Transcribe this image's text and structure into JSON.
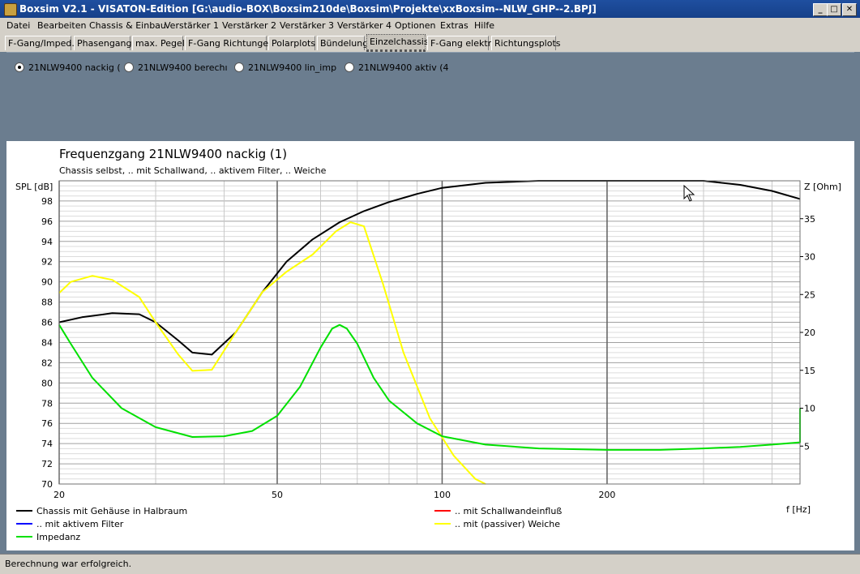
{
  "window": {
    "title": "Boxsim V2.1 - VISATON-Edition [G:\\audio-BOX\\Boxsim210de\\Boxsim\\Projekte\\xxBoxsim--NLW_GHP--2.BPJ]"
  },
  "menu": [
    "Datei",
    "Bearbeiten",
    "Chassis & Einbau",
    "Verstärker 1",
    "Verstärker 2",
    "Verstärker 3",
    "Verstärker 4",
    "Optionen",
    "Extras",
    "Hilfe"
  ],
  "tabs": [
    "F-Gang/Imped.",
    "Phasengang",
    "max. Pegel",
    "F-Gang Richtungen",
    "Polarplots",
    "Bündelung",
    "Einzelchassis",
    "F-Gang elektr.",
    "Richtungsplots"
  ],
  "active_tab": "Einzelchassis",
  "radios": [
    {
      "label": "21NLW9400 nackig (",
      "selected": true
    },
    {
      "label": "21NLW9400 berechı",
      "selected": false
    },
    {
      "label": "21NLW9400 lin_imp",
      "selected": false
    },
    {
      "label": "21NLW9400 aktiv (4",
      "selected": false
    }
  ],
  "status": "Berechnung war erfolgreich.",
  "chart_data": {
    "type": "line",
    "title": "Frequenzgang 21NLW9400 nackig (1)",
    "subtitle": "Chassis selbst, .. mit Schallwand, .. aktivem Filter, .. Weiche",
    "ylabel": "SPL [dB]",
    "y2label": "Z [Ohm]",
    "xlabel": "f [Hz]",
    "x_scale": "log",
    "xlim": [
      20,
      450
    ],
    "ylim": [
      70,
      100
    ],
    "y2lim": [
      0,
      40
    ],
    "x_ticks": [
      20,
      50,
      100,
      200
    ],
    "y_ticks": [
      70,
      72,
      74,
      76,
      78,
      80,
      82,
      84,
      86,
      88,
      90,
      92,
      94,
      96,
      98
    ],
    "y2_ticks": [
      5,
      10,
      15,
      20,
      25,
      30,
      35
    ],
    "legend": [
      "Chassis mit Gehäuse in Halbraum",
      ".. mit Schallwandeinfluß",
      ".. mit aktivem Filter",
      ".. mit (passiver) Weiche",
      "Impedanz"
    ],
    "legend_colors": [
      "#000000",
      "#ff0000",
      "#0000ff",
      "#ffff00",
      "#00e000"
    ],
    "series": [
      {
        "name": "Chassis mit Gehäuse in Halbraum",
        "color": "#000000",
        "axis": "left",
        "x": [
          20,
          22,
          25,
          28,
          30,
          33,
          35,
          38,
          42,
          47,
          52,
          58,
          65,
          72,
          80,
          90,
          100,
          120,
          150,
          200,
          250,
          300,
          350,
          400,
          450
        ],
        "y": [
          86,
          86.5,
          86.9,
          86.8,
          86,
          84.2,
          83,
          82.8,
          85,
          89,
          92,
          94.2,
          95.9,
          97,
          97.9,
          98.7,
          99.3,
          99.8,
          100,
          100,
          100,
          100,
          99.6,
          99,
          98.2
        ]
      },
      {
        "name": ".. mit (passiver) Weiche",
        "color": "#ffff00",
        "axis": "left",
        "x": [
          20,
          21,
          23,
          25,
          28,
          30,
          33,
          35,
          38,
          42,
          47,
          52,
          58,
          64,
          68,
          72,
          78,
          85,
          95,
          105,
          115,
          120
        ],
        "y": [
          88.9,
          90,
          90.6,
          90.2,
          88.5,
          86,
          82.8,
          81.2,
          81.3,
          85,
          89,
          91,
          92.7,
          95,
          95.9,
          95.5,
          89.8,
          83,
          76.5,
          72.8,
          70.5,
          70
        ]
      },
      {
        "name": "Impedanz",
        "color": "#00e000",
        "axis": "right",
        "x": [
          20,
          21,
          23,
          26,
          30,
          35,
          40,
          45,
          50,
          55,
          60,
          63,
          65,
          67,
          70,
          75,
          80,
          90,
          100,
          120,
          150,
          200,
          250,
          300,
          350,
          400,
          450,
          450
        ],
        "y": [
          21,
          18.5,
          14,
          10,
          7.5,
          6.2,
          6.3,
          7,
          9,
          12.8,
          18,
          20.5,
          21,
          20.5,
          18.5,
          14,
          11,
          8,
          6.3,
          5.2,
          4.7,
          4.5,
          4.5,
          4.7,
          4.9,
          5.2,
          5.5,
          10
        ]
      }
    ]
  }
}
